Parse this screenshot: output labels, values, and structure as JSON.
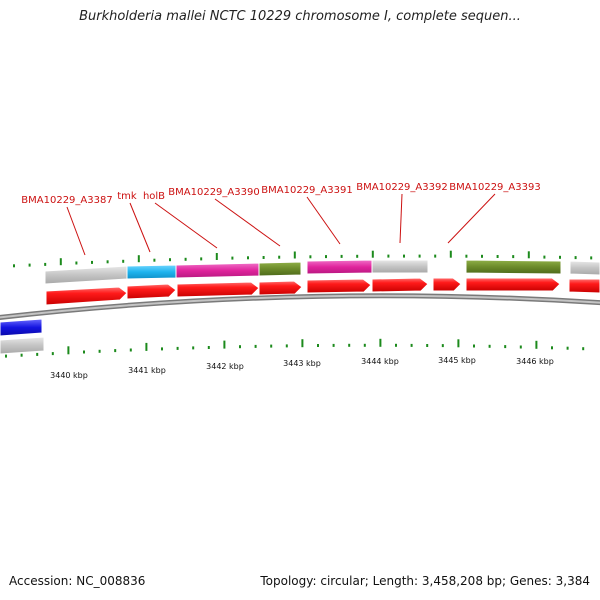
{
  "title": "Burkholderia mallei NCTC 10229 chromosome I, complete sequen...",
  "footer": {
    "accession": "Accession: NC_008836",
    "summary": "Topology: circular; Length: 3,458,208 bp; Genes: 3,384"
  },
  "ruler_labels": [
    "3440 kbp",
    "3441 kbp",
    "3442 kbp",
    "3443 kbp",
    "3444 kbp",
    "3445 kbp",
    "3446 kbp"
  ],
  "gene_labels": [
    "BMA10229_A3387",
    "tmk",
    "holB",
    "BMA10229_A3390",
    "BMA10229_A3391",
    "BMA10229_A3392",
    "BMA10229_A3393"
  ],
  "colors": {
    "gene_red": "#e8101a",
    "label_red": "#cc1111",
    "tick_green": "#1c8a1c",
    "gray_feature": "#c8c8c8",
    "cyan_feature": "#29b6e6",
    "magenta_feature": "#e0249c",
    "olive_feature": "#6b8a2a",
    "blue_feature": "#1414e0",
    "backbone": "#8c8c8c"
  }
}
